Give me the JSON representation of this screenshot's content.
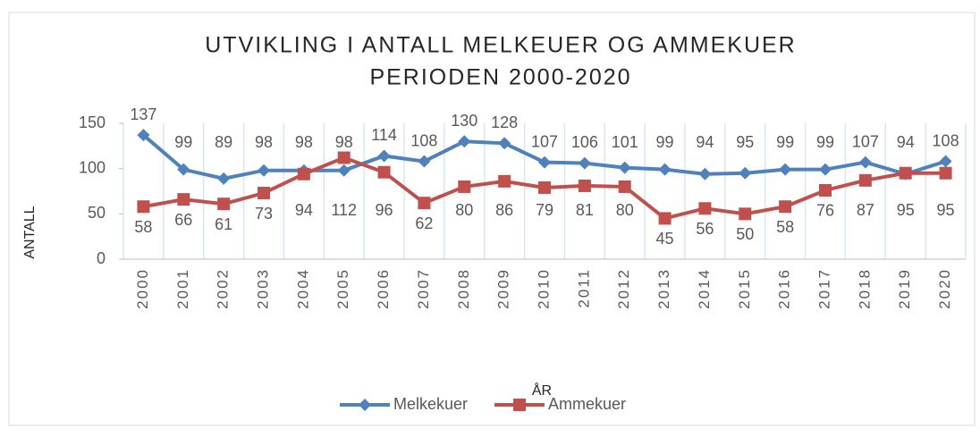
{
  "chart_data": {
    "type": "line",
    "title": [
      "UTVIKLING I ANTALL MELKEUER OG AMMEKUER",
      "PERIODEN 2000-2020"
    ],
    "x_label": "ÅR",
    "y_label": "ANTALL",
    "categories": [
      "2000",
      "2001",
      "2002",
      "2003",
      "2004",
      "2005",
      "2006",
      "2007",
      "2008",
      "2009",
      "2010",
      "2011",
      "2012",
      "2013",
      "2014",
      "2015",
      "2016",
      "2017",
      "2018",
      "2019",
      "2020"
    ],
    "series": [
      {
        "name": "Melkekuer",
        "color": "#4f81bd",
        "marker": "diamond",
        "label_side": "above",
        "values": [
          137,
          99,
          89,
          98,
          98,
          98,
          114,
          108,
          130,
          128,
          107,
          106,
          101,
          99,
          94,
          95,
          99,
          99,
          107,
          94,
          108
        ]
      },
      {
        "name": "Ammekuer",
        "color": "#c0504d",
        "marker": "square",
        "label_side": "below",
        "values": [
          58,
          66,
          61,
          73,
          94,
          112,
          96,
          62,
          80,
          86,
          79,
          81,
          80,
          45,
          56,
          50,
          58,
          76,
          87,
          95,
          95
        ]
      }
    ],
    "ylim": [
      0,
      150
    ],
    "yticks": [
      0,
      50,
      100,
      150
    ],
    "grid": true,
    "legend": "bottom"
  }
}
